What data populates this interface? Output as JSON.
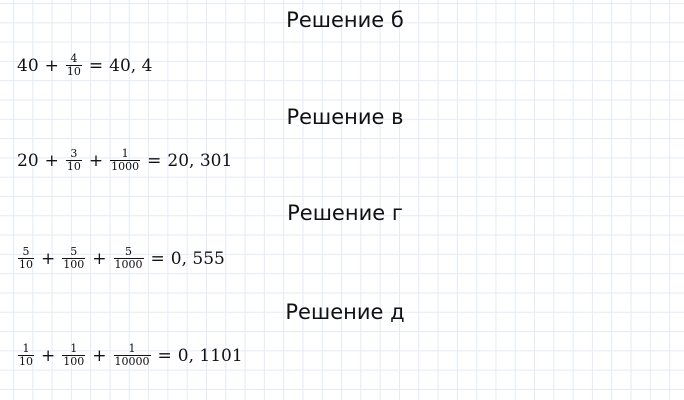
{
  "sections": [
    {
      "heading": "Решение б",
      "terms": [
        {
          "whole": "40"
        },
        {
          "num": "4",
          "den": "10"
        }
      ],
      "result": "40, 4"
    },
    {
      "heading": "Решение в",
      "terms": [
        {
          "whole": "20"
        },
        {
          "num": "3",
          "den": "10"
        },
        {
          "num": "1",
          "den": "1000"
        }
      ],
      "result": "20, 301"
    },
    {
      "heading": "Решение г",
      "terms": [
        {
          "num": "5",
          "den": "10"
        },
        {
          "num": "5",
          "den": "100"
        },
        {
          "num": "5",
          "den": "1000"
        }
      ],
      "result": "0, 555"
    },
    {
      "heading": "Решение д",
      "terms": [
        {
          "num": "1",
          "den": "10"
        },
        {
          "num": "1",
          "den": "100"
        },
        {
          "num": "1",
          "den": "10000"
        }
      ],
      "result": "0, 1101"
    }
  ],
  "symbols": {
    "plus": "+",
    "equals": "="
  }
}
